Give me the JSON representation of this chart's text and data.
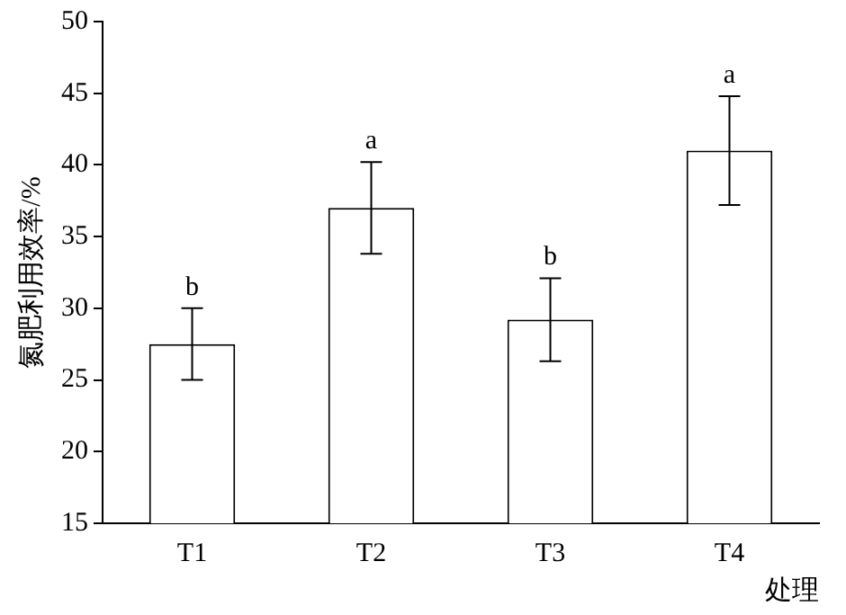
{
  "chart_data": {
    "type": "bar",
    "xlabel": "处理",
    "ylabel": "氮肥利用效率/%",
    "categories": [
      "T1",
      "T2",
      "T3",
      "T4"
    ],
    "values": [
      27.5,
      37.0,
      29.2,
      41.0
    ],
    "errors": [
      2.5,
      3.2,
      2.9,
      3.8
    ],
    "color": "#ffffff",
    "ylim": [
      15,
      50
    ],
    "yticks": [
      15,
      20,
      25,
      30,
      35,
      40,
      45,
      50
    ],
    "grid": false,
    "annotations": [
      {
        "text": "b",
        "x": "T1",
        "y": 30
      },
      {
        "text": "a",
        "x": "T2",
        "y": 40.2
      },
      {
        "text": "b",
        "x": "T3",
        "y": 32.1
      },
      {
        "text": "a",
        "x": "T4",
        "y": 44.8
      }
    ]
  }
}
